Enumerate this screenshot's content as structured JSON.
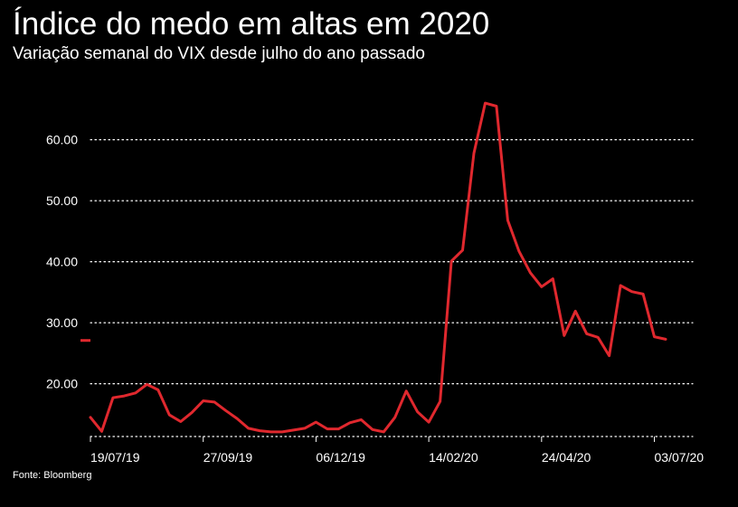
{
  "header": {
    "title": "Índice do medo em altas em 2020",
    "subtitle": "Variação semanal do VIX desde julho do ano passado"
  },
  "footer": {
    "source": "Fonte: Bloomberg"
  },
  "colors": {
    "background": "#000000",
    "line": "#e0282e",
    "text": "#ffffff",
    "grid": "#ffffff"
  },
  "chart_data": {
    "type": "line",
    "title": "Índice do medo em altas em 2020",
    "subtitle": "Variação semanal do VIX desde julho do ano passado",
    "xlabel": "",
    "ylabel": "",
    "ylim": [
      11.5,
      68
    ],
    "yticks": [
      20,
      30,
      40,
      50,
      60
    ],
    "ytick_labels": [
      "20.00",
      "30.00",
      "40.00",
      "50.00",
      "60.00"
    ],
    "xticks": [
      {
        "label": "19/07/19",
        "index": 0
      },
      {
        "label": "27/09/19",
        "index": 10
      },
      {
        "label": "06/12/19",
        "index": 20
      },
      {
        "label": "14/02/20",
        "index": 30
      },
      {
        "label": "24/04/20",
        "index": 40
      },
      {
        "label": "03/07/20",
        "index": 50
      }
    ],
    "grid": "horizontal-dotted",
    "legend": "none",
    "series": [
      {
        "values": [
          14.5,
          12.2,
          17.7,
          18.0,
          18.5,
          19.9,
          19.0,
          14.9,
          13.8,
          15.3,
          17.2,
          17.0,
          15.6,
          14.3,
          12.7,
          12.3,
          12.1,
          12.1,
          12.4,
          12.7,
          13.7,
          12.6,
          12.6,
          13.6,
          14.1,
          12.5,
          12.1,
          14.5,
          18.8,
          15.4,
          13.7,
          17.1,
          40.1,
          41.9,
          57.8,
          66.0,
          65.5,
          46.8,
          41.7,
          38.2,
          35.9,
          37.2,
          27.9,
          31.9,
          28.2,
          27.6,
          24.6,
          36.1,
          35.1,
          34.7,
          27.7,
          27.3
        ]
      }
    ],
    "annotations": [
      {
        "type": "reference-marker",
        "y": 27.1
      }
    ]
  }
}
